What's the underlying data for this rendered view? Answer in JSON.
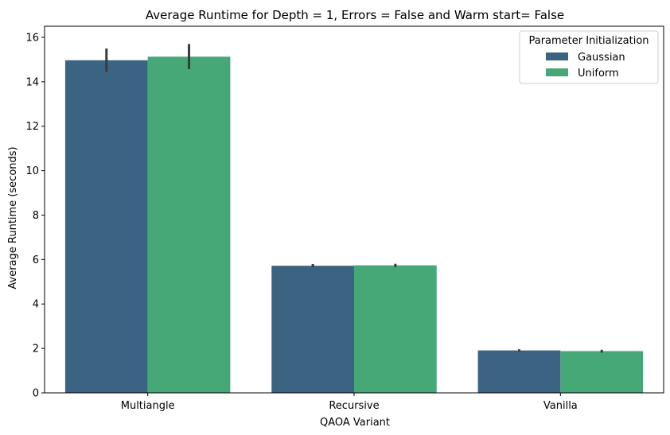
{
  "chart_data": {
    "type": "bar",
    "title": "Average Runtime for Depth = 1, Errors = False and Warm start= False",
    "xlabel": "QAOA Variant",
    "ylabel": "Average Runtime (seconds)",
    "categories": [
      "Multiangle",
      "Recursive",
      "Vanilla"
    ],
    "ylim": [
      0,
      16.5
    ],
    "yticks": [
      "0",
      "2",
      "4",
      "6",
      "8",
      "10",
      "12",
      "14",
      "16"
    ],
    "grid": false,
    "legend": {
      "title": "Parameter Initialization",
      "placement": "top-right"
    },
    "series": [
      {
        "name": "Gaussian",
        "color": "#3b6482",
        "values": [
          14.97,
          5.72,
          1.91
        ],
        "error_low": [
          14.45,
          5.66,
          1.87
        ],
        "error_high": [
          15.5,
          5.8,
          1.96
        ]
      },
      {
        "name": "Uniform",
        "color": "#46a877",
        "values": [
          15.13,
          5.74,
          1.88
        ],
        "error_low": [
          14.57,
          5.66,
          1.81
        ],
        "error_high": [
          15.7,
          5.81,
          1.94
        ]
      }
    ],
    "error_bar_color": "#3a3a3a"
  }
}
